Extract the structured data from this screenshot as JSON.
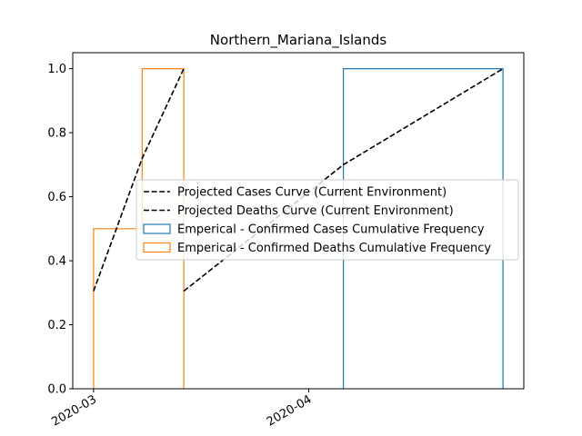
{
  "chart_data": {
    "type": "line",
    "title": "Northern_Mariana_Islands",
    "xlabel": "",
    "ylabel": "",
    "x_axis": {
      "type": "date",
      "range": [
        "2020-02-27",
        "2020-05-02"
      ],
      "ticks": [
        {
          "value": "2020-03-01",
          "label": "2020-03"
        },
        {
          "value": "2020-04-01",
          "label": "2020-04"
        }
      ]
    },
    "y_axis": {
      "range": [
        0,
        1.05
      ],
      "ticks": [
        {
          "value": 0.0,
          "label": "0.0"
        },
        {
          "value": 0.2,
          "label": "0.2"
        },
        {
          "value": 0.4,
          "label": "0.4"
        },
        {
          "value": 0.6,
          "label": "0.6"
        },
        {
          "value": 0.8,
          "label": "0.8"
        },
        {
          "value": 1.0,
          "label": "1.0"
        }
      ]
    },
    "grid": false,
    "legend": "center-right",
    "series": [
      {
        "name": "Projected Cases Curve (Current Environment)",
        "kind": "line",
        "style": "dashed",
        "color": "#000000",
        "points": [
          {
            "x": "2020-03-14",
            "y": 0.305
          },
          {
            "x": "2020-04-06",
            "y": 0.7
          },
          {
            "x": "2020-04-29",
            "y": 1.0
          }
        ]
      },
      {
        "name": "Projected Deaths Curve (Current Environment)",
        "kind": "line",
        "style": "dashed",
        "color": "#000000",
        "points": [
          {
            "x": "2020-03-01",
            "y": 0.305
          },
          {
            "x": "2020-03-08",
            "y": 0.72
          },
          {
            "x": "2020-03-14",
            "y": 1.0
          }
        ]
      },
      {
        "name": "Emperical - Confirmed Cases Cumulative Frequency",
        "kind": "step",
        "color": "#1f77b4",
        "points": [
          {
            "x": "2020-04-06",
            "y": 0
          },
          {
            "x": "2020-04-06",
            "y": 1.0
          },
          {
            "x": "2020-04-29",
            "y": 1.0
          },
          {
            "x": "2020-04-29",
            "y": 0
          }
        ]
      },
      {
        "name": "Emperical - Confirmed Deaths Cumulative Frequency",
        "kind": "step",
        "color": "#ff7f0e",
        "points": [
          {
            "x": "2020-03-01",
            "y": 0
          },
          {
            "x": "2020-03-01",
            "y": 0.5
          },
          {
            "x": "2020-03-08",
            "y": 0.5
          },
          {
            "x": "2020-03-08",
            "y": 1.0
          },
          {
            "x": "2020-03-14",
            "y": 1.0
          },
          {
            "x": "2020-03-14",
            "y": 0
          }
        ]
      }
    ]
  }
}
